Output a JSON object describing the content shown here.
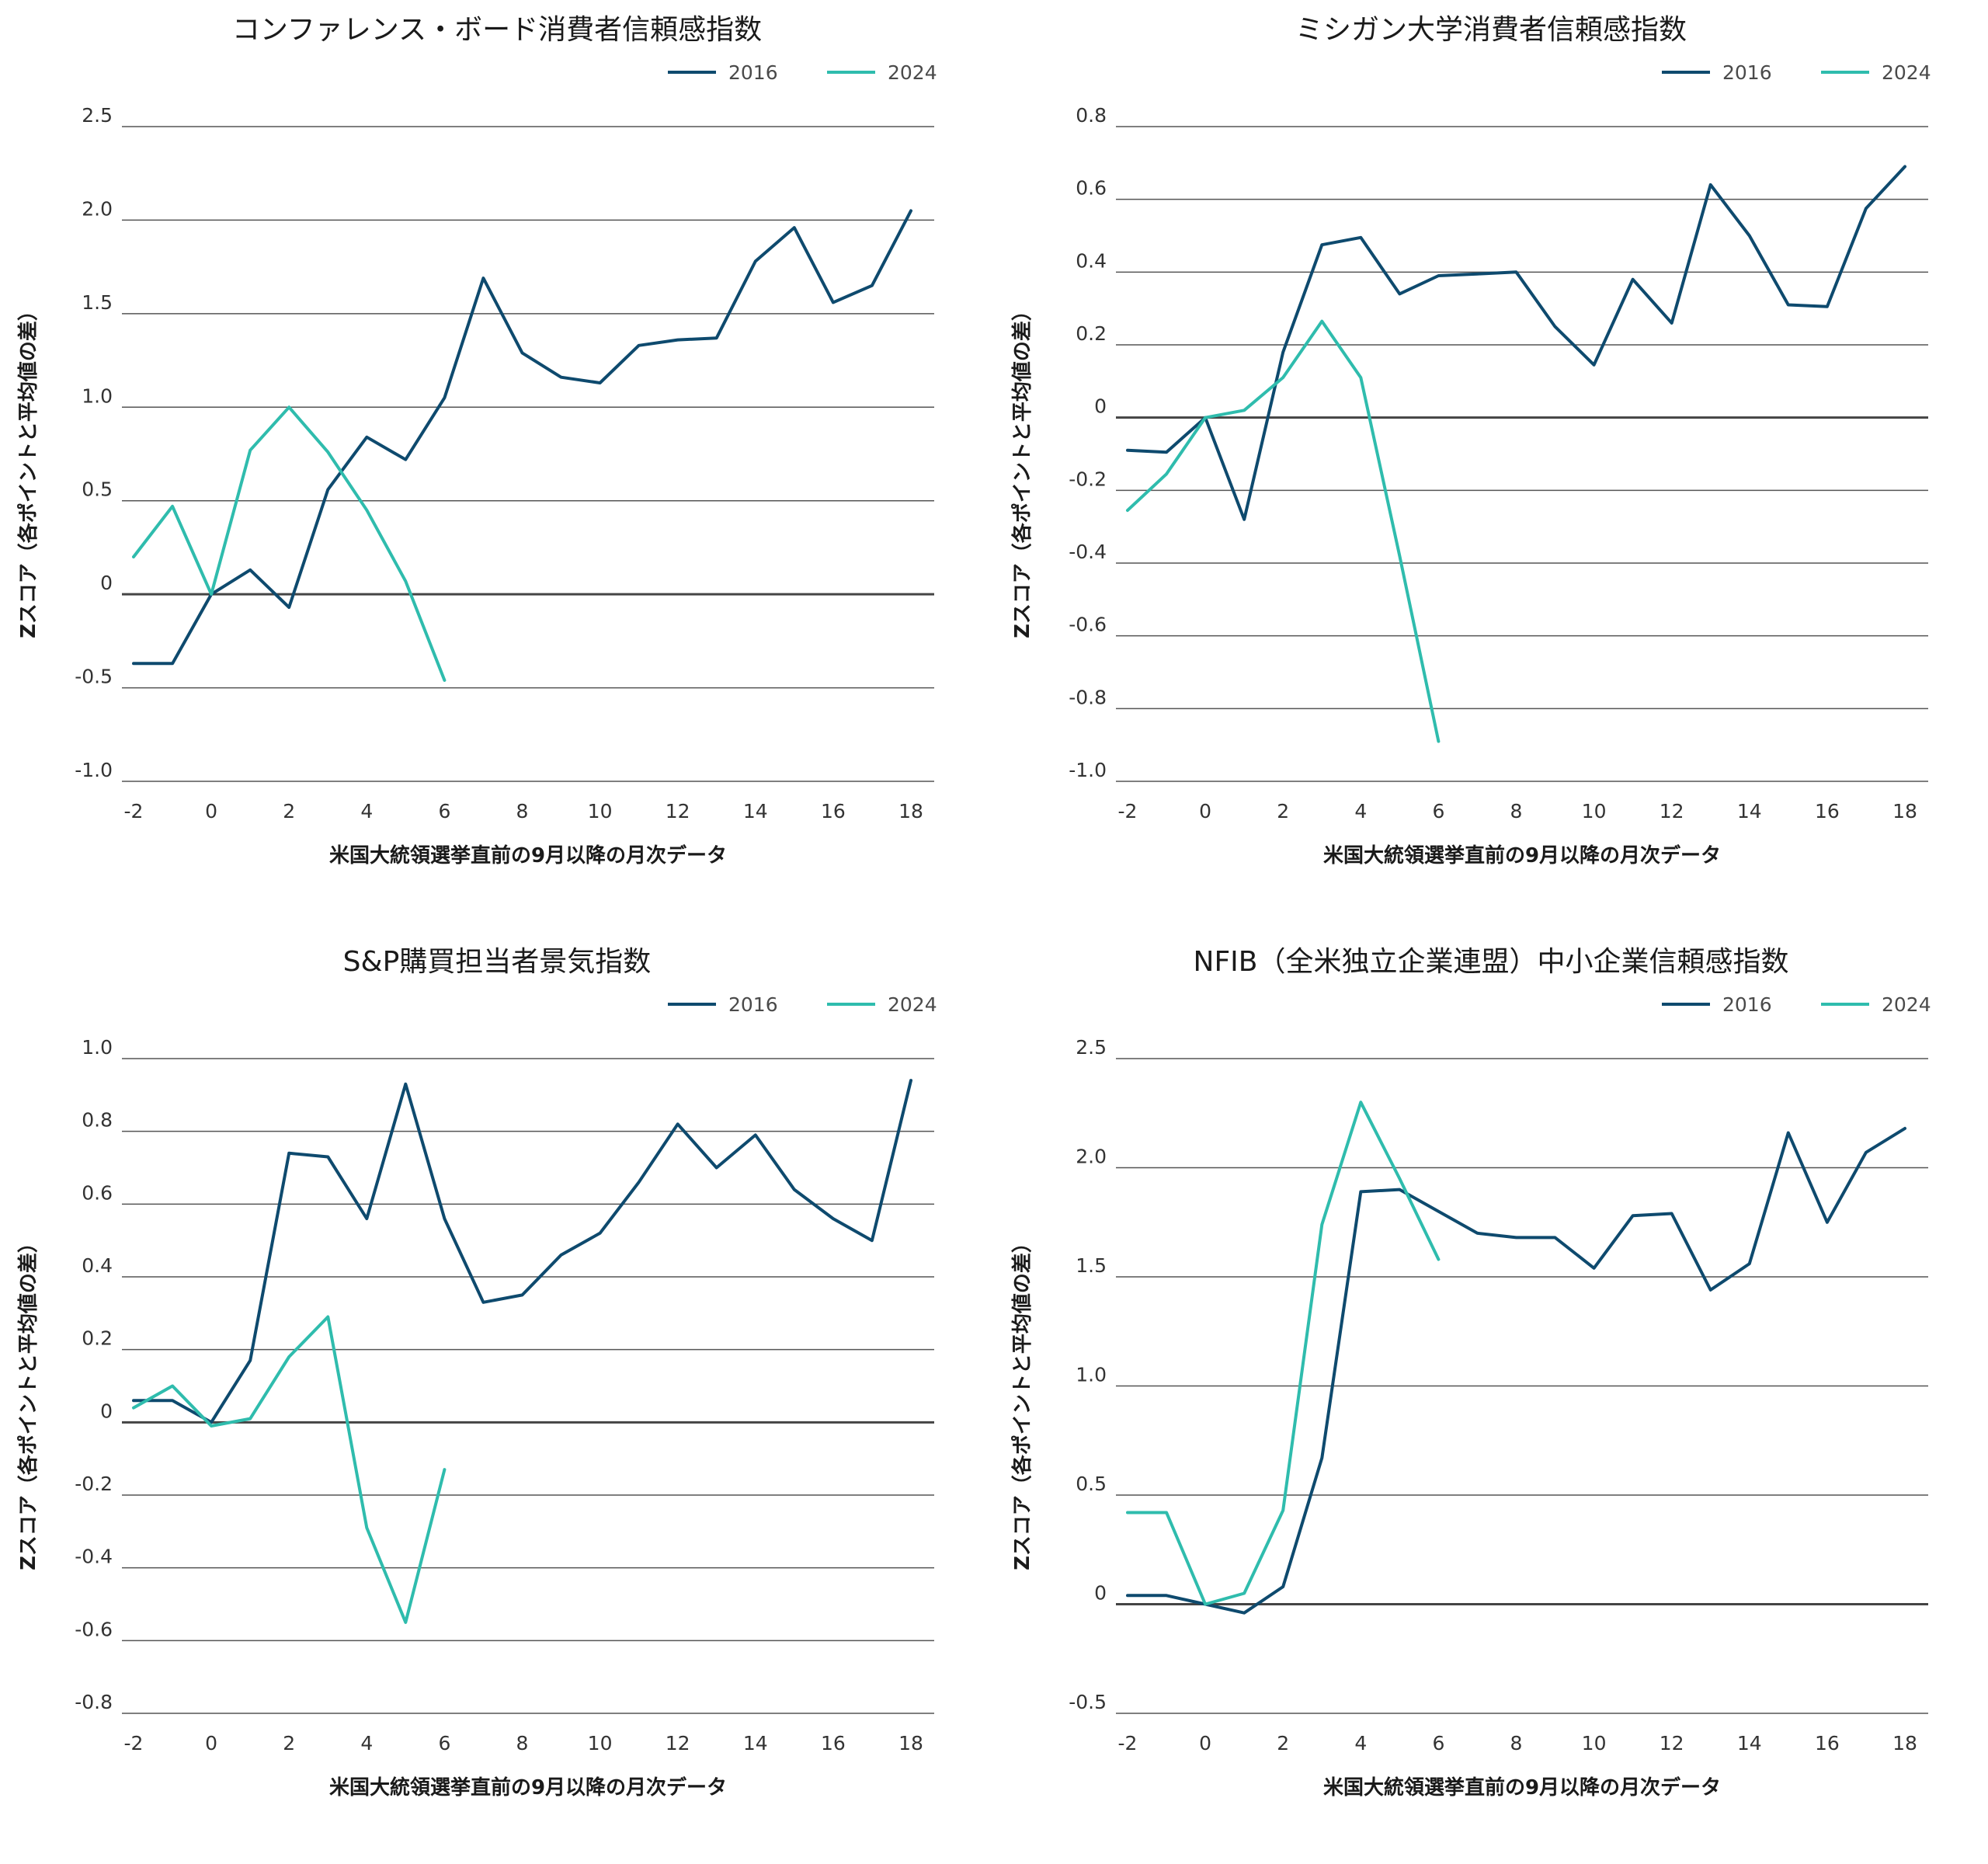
{
  "colors": {
    "s2016": "#0e4a6e",
    "s2024": "#2fbcad",
    "grid": "#555555",
    "zero": "#444444"
  },
  "chart_data": [
    {
      "type": "line",
      "title": "コンファレンス・ボード消費者信頼感指数",
      "xlabel": "米国大統領選挙直前の9月以降の月次データ",
      "ylabel": "Zスコア（各ポイントと平均値の差）",
      "xlim": [
        -2.3,
        18.6
      ],
      "ylim": [
        -1.0,
        2.5
      ],
      "xticks": [
        "-2",
        "0",
        "2",
        "4",
        "6",
        "8",
        "10",
        "12",
        "14",
        "16",
        "18"
      ],
      "yticks": [
        "2.5",
        "2.0",
        "1.5",
        "1.0",
        "0.5",
        "0",
        "-0.5",
        "-1.0"
      ],
      "grid": true,
      "legend": "top-right",
      "series": [
        {
          "name": "2016",
          "x": [
            -2,
            -1,
            0,
            1,
            2,
            3,
            4,
            5,
            6,
            7,
            8,
            9,
            10,
            11,
            12,
            13,
            14,
            15,
            16,
            17,
            18
          ],
          "y": [
            -0.37,
            -0.37,
            0.0,
            0.13,
            -0.07,
            0.56,
            0.84,
            0.72,
            1.05,
            1.69,
            1.29,
            1.16,
            1.13,
            1.33,
            1.36,
            1.37,
            1.78,
            1.96,
            1.56,
            1.65,
            2.05
          ]
        },
        {
          "name": "2024",
          "x": [
            -2,
            -1,
            0,
            1,
            2,
            3,
            4,
            5,
            6
          ],
          "y": [
            0.2,
            0.47,
            0.0,
            0.77,
            1.0,
            0.76,
            0.45,
            0.07,
            -0.46
          ]
        }
      ]
    },
    {
      "type": "line",
      "title": "ミシガン大学消費者信頼感指数",
      "xlabel": "米国大統領選挙直前の9月以降の月次データ",
      "ylabel": "Zスコア（各ポイントと平均値の差）",
      "xlim": [
        -2.3,
        18.6
      ],
      "ylim": [
        -1.0,
        0.8
      ],
      "xticks": [
        "-2",
        "0",
        "2",
        "4",
        "6",
        "8",
        "10",
        "12",
        "14",
        "16",
        "18"
      ],
      "yticks": [
        "0.8",
        "0.6",
        "0.4",
        "0.2",
        "0",
        "-0.2",
        "-0.4",
        "-0.6",
        "-0.8",
        "-1.0"
      ],
      "grid": true,
      "legend": "top-right",
      "series": [
        {
          "name": "2016",
          "x": [
            -2,
            -1,
            0,
            1,
            2,
            3,
            4,
            5,
            6,
            7,
            8,
            9,
            10,
            11,
            12,
            13,
            14,
            15,
            16,
            17,
            18
          ],
          "y": [
            -0.09,
            -0.095,
            0.0,
            -0.28,
            0.18,
            0.475,
            0.495,
            0.34,
            0.39,
            0.395,
            0.4,
            0.25,
            0.145,
            0.38,
            0.26,
            0.64,
            0.5,
            0.31,
            0.305,
            0.575,
            0.69
          ]
        },
        {
          "name": "2024",
          "x": [
            -2,
            -1,
            0,
            1,
            2,
            3,
            4,
            5,
            6
          ],
          "y": [
            -0.255,
            -0.155,
            0.0,
            0.02,
            0.11,
            0.265,
            0.11,
            -0.38,
            -0.89
          ]
        }
      ]
    },
    {
      "type": "line",
      "title": "S&P購買担当者景気指数",
      "xlabel": "米国大統領選挙直前の9月以降の月次データ",
      "ylabel": "Zスコア（各ポイントと平均値の差）",
      "xlim": [
        -2.3,
        18.6
      ],
      "ylim": [
        -0.8,
        1.0
      ],
      "xticks": [
        "-2",
        "0",
        "2",
        "4",
        "6",
        "8",
        "10",
        "12",
        "14",
        "16",
        "18"
      ],
      "yticks": [
        "1.0",
        "0.8",
        "0.6",
        "0.4",
        "0.2",
        "0",
        "-0.2",
        "-0.4",
        "-0.6",
        "-0.8"
      ],
      "grid": true,
      "legend": "top-right",
      "series": [
        {
          "name": "2016",
          "x": [
            -2,
            -1,
            0,
            1,
            2,
            3,
            4,
            5,
            6,
            7,
            8,
            9,
            10,
            11,
            12,
            13,
            14,
            15,
            16,
            17,
            18
          ],
          "y": [
            0.06,
            0.06,
            0.0,
            0.17,
            0.74,
            0.73,
            0.56,
            0.93,
            0.56,
            0.33,
            0.35,
            0.46,
            0.52,
            0.66,
            0.82,
            0.7,
            0.79,
            0.64,
            0.56,
            0.5,
            0.94
          ]
        },
        {
          "name": "2024",
          "x": [
            -2,
            -1,
            0,
            1,
            2,
            3,
            4,
            5,
            6
          ],
          "y": [
            0.04,
            0.1,
            -0.01,
            0.01,
            0.18,
            0.29,
            -0.29,
            -0.55,
            -0.13
          ]
        }
      ]
    },
    {
      "type": "line",
      "title": "NFIB（全米独立企業連盟）中小企業信頼感指数",
      "xlabel": "米国大統領選挙直前の9月以降の月次データ",
      "ylabel": "Zスコア（各ポイントと平均値の差）",
      "xlim": [
        -2.3,
        18.6
      ],
      "ylim": [
        -0.5,
        2.5
      ],
      "xticks": [
        "-2",
        "0",
        "2",
        "4",
        "6",
        "8",
        "10",
        "12",
        "14",
        "16",
        "18"
      ],
      "yticks": [
        "2.5",
        "2.0",
        "1.5",
        "1.0",
        "0.5",
        "0",
        "-0.5"
      ],
      "grid": true,
      "legend": "top-right",
      "series": [
        {
          "name": "2016",
          "x": [
            -2,
            -1,
            0,
            1,
            2,
            3,
            4,
            5,
            6,
            7,
            8,
            9,
            10,
            11,
            12,
            13,
            14,
            15,
            16,
            17,
            18
          ],
          "y": [
            0.04,
            0.04,
            0.0,
            -0.04,
            0.08,
            0.67,
            1.89,
            1.9,
            1.8,
            1.7,
            1.68,
            1.68,
            1.54,
            1.78,
            1.79,
            1.44,
            1.56,
            2.16,
            1.75,
            2.07,
            2.18
          ]
        },
        {
          "name": "2024",
          "x": [
            -2,
            -1,
            0,
            1,
            2,
            3,
            4,
            5,
            6
          ],
          "y": [
            0.42,
            0.42,
            0.0,
            0.05,
            0.43,
            1.74,
            2.3,
            1.95,
            1.58
          ]
        }
      ]
    }
  ]
}
